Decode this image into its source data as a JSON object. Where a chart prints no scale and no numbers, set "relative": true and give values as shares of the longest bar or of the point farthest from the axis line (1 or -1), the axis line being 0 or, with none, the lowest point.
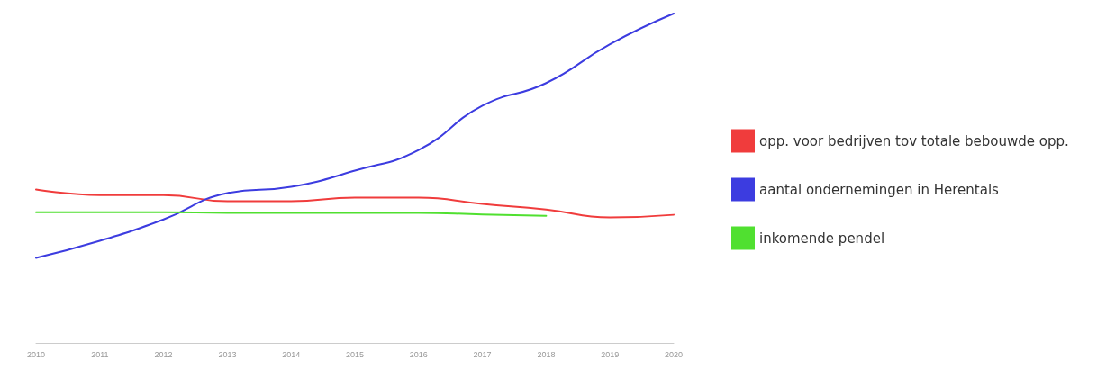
{
  "chart_data": {
    "type": "line",
    "relative": true,
    "legend": "right",
    "marker": "none",
    "line_style": "solid",
    "categories": [
      "2010",
      "2011",
      "2012",
      "2013",
      "2014",
      "2015",
      "2016",
      "2017",
      "2018",
      "2019",
      "2020"
    ],
    "series": [
      {
        "name": "opp. voor bedrijven tov totale bebouwde opp.",
        "color": "#f03c3c",
        "values": [
          0.466,
          0.449,
          0.449,
          0.43,
          0.43,
          0.441,
          0.441,
          0.422,
          0.405,
          0.381,
          0.389
        ]
      },
      {
        "name": "aantal ondernemingen in Herentals",
        "color": "#3c3ce0",
        "values": [
          0.258,
          0.31,
          0.375,
          0.455,
          0.474,
          0.523,
          0.586,
          0.72,
          0.789,
          0.907,
          1
        ]
      },
      {
        "name": "inkomende pendel",
        "color": "#50e030",
        "values": [
          0.397,
          0.397,
          0.397,
          0.395,
          0.395,
          0.395,
          0.395,
          0.39,
          0.386,
          null,
          null
        ]
      }
    ]
  }
}
